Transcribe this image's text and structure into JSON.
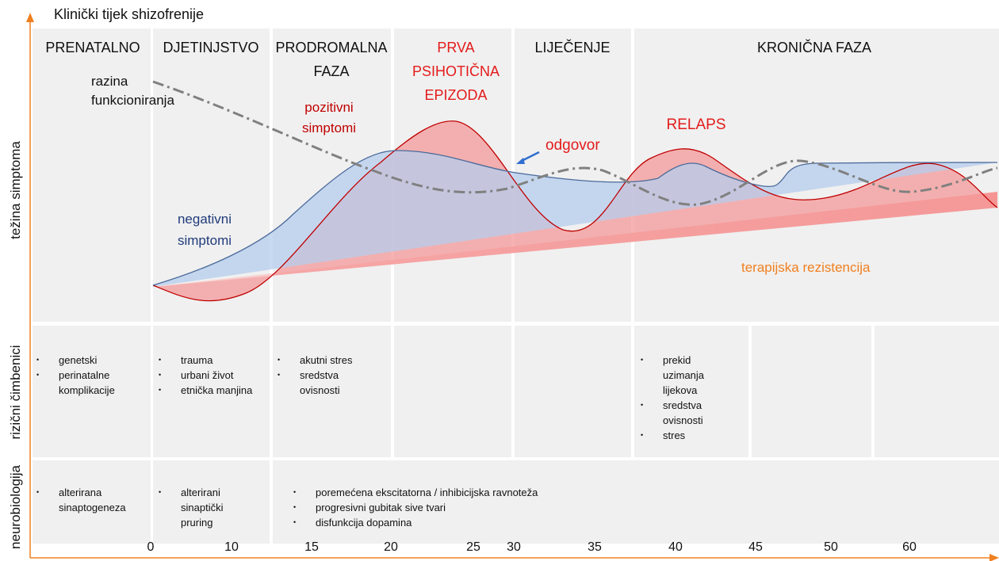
{
  "title": "Klinički tijek shizofrenije",
  "row_labels": [
    "težina simptoma",
    "rizični čimbenici",
    "neurobiologija"
  ],
  "phases": [
    [
      "PRENATALNO"
    ],
    [
      "DJETINJSTVO"
    ],
    [
      "PRODROMALNA",
      "FAZA"
    ],
    [
      "PRVA",
      "PSIHOTIČNA",
      "EPIZODA"
    ],
    [
      "LIJEČENJE"
    ],
    [
      "KRONIČNA FAZA"
    ]
  ],
  "curve_labels": {
    "functioning": [
      "razina",
      "funkcioniranja"
    ],
    "positive": [
      "pozitivni",
      "simptomi"
    ],
    "response": "odgovor",
    "relapse": "RELAPS",
    "negative": [
      "negativni",
      "simptomi"
    ],
    "resistance": "terapijska rezistencija"
  },
  "risk_factors": [
    [
      "genetski",
      "perinatalne komplikacije"
    ],
    [
      "trauma",
      "urbani život",
      "etnička manjina"
    ],
    [
      "akutni stres",
      "sredstva ovisnosti"
    ],
    [
      "prekid uzimanja lijekova",
      "sredstva ovisnosti",
      "stres"
    ]
  ],
  "neurobiology": [
    [
      "alterirana sinaptogeneza"
    ],
    [
      "alterirani sinaptički pruring"
    ],
    [
      "poremećena ekscitatorna / inhibicijska ravnoteža",
      "progresivni gubitak sive tvari",
      "disfunkcija dopamina"
    ]
  ],
  "x_axis": [
    "0",
    "10",
    "15",
    "20",
    "25",
    "30",
    "35",
    "40",
    "45",
    "50",
    "60"
  ]
}
